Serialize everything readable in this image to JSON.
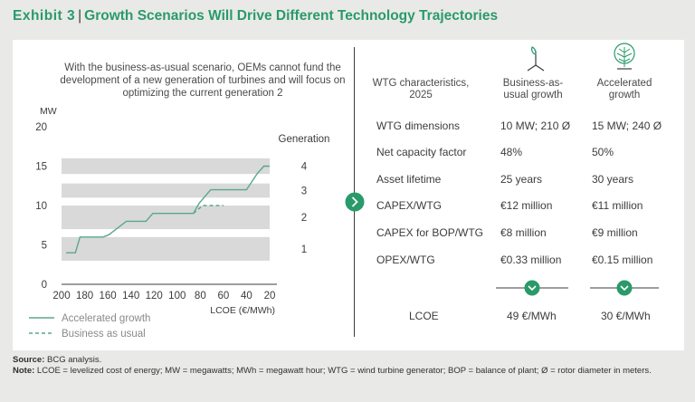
{
  "header": {
    "exhibit": "Exhibit 3",
    "title": "Growth Scenarios Will Drive Different Technology Trajectories"
  },
  "left": {
    "caption": "With the business-as-usual scenario, OEMs cannot fund the development of a new generation of turbines and will focus on optimizing the current generation 2"
  },
  "chart_data": {
    "type": "line",
    "ylabel": "MW",
    "xlabel": "LCOE (€/MWh)",
    "ylim": [
      0,
      20
    ],
    "xlim": [
      200,
      20
    ],
    "xticks": [
      200,
      180,
      160,
      140,
      120,
      100,
      80,
      60,
      40,
      20
    ],
    "yticks": [
      0,
      5,
      10,
      15,
      20
    ],
    "generation_title": "Generation",
    "generations": [
      {
        "label": "1",
        "y_min": 3,
        "y_max": 6
      },
      {
        "label": "2",
        "y_min": 7,
        "y_max": 10
      },
      {
        "label": "3",
        "y_min": 11,
        "y_max": 12.8
      },
      {
        "label": "4",
        "y_min": 14,
        "y_max": 16
      }
    ],
    "series": [
      {
        "name": "Accelerated growth",
        "style": "solid",
        "color": "#5aa889",
        "x": [
          196,
          188,
          184,
          164,
          159,
          144,
          140,
          127,
          121,
          86,
          81,
          71,
          61,
          40,
          31,
          25,
          20
        ],
        "y": [
          4,
          4,
          6,
          6,
          6.3,
          8,
          8,
          8,
          9,
          9,
          10.3,
          12,
          12,
          12,
          14,
          15,
          15
        ]
      },
      {
        "name": "Business as usual",
        "style": "dashed",
        "color": "#5aa889",
        "x": [
          86,
          78,
          60
        ],
        "y": [
          9,
          10,
          10
        ]
      }
    ]
  },
  "table": {
    "header": {
      "characteristics": "WTG characteristics, 2025",
      "bau": "Business-as-usual growth",
      "acc": "Accelerated growth"
    },
    "rows": [
      {
        "label": "WTG dimensions",
        "bau": "10 MW; 210 Ø",
        "acc": "15 MW; 240 Ø"
      },
      {
        "label": "Net capacity factor",
        "bau": "48%",
        "acc": "50%"
      },
      {
        "label": "Asset lifetime",
        "bau": "25 years",
        "acc": "30 years"
      },
      {
        "label": "CAPEX/WTG",
        "bau": "€12 million",
        "acc": "€11 million"
      },
      {
        "label": "CAPEX for BOP/WTG",
        "bau": "€8 million",
        "acc": "€9 million"
      },
      {
        "label": "OPEX/WTG",
        "bau": "€0.33 million",
        "acc": "€0.15 million"
      }
    ],
    "lcoe": {
      "label": "LCOE",
      "bau": "49 €/MWh",
      "acc": "30 €/MWh"
    }
  },
  "footer": {
    "source_label": "Source:",
    "source_text": "BCG analysis.",
    "note_label": "Note:",
    "note_text": "LCOE = levelized cost of energy; MW = megawatts; MWh = megawatt hour; WTG = wind turbine generator; BOP = balance of plant; Ø = rotor diameter in meters."
  },
  "colors": {
    "accent": "#2a9a6a",
    "line": "#5aa889",
    "band": "#d9d9d9",
    "background": "#e9eae8",
    "panel": "#ffffff"
  }
}
